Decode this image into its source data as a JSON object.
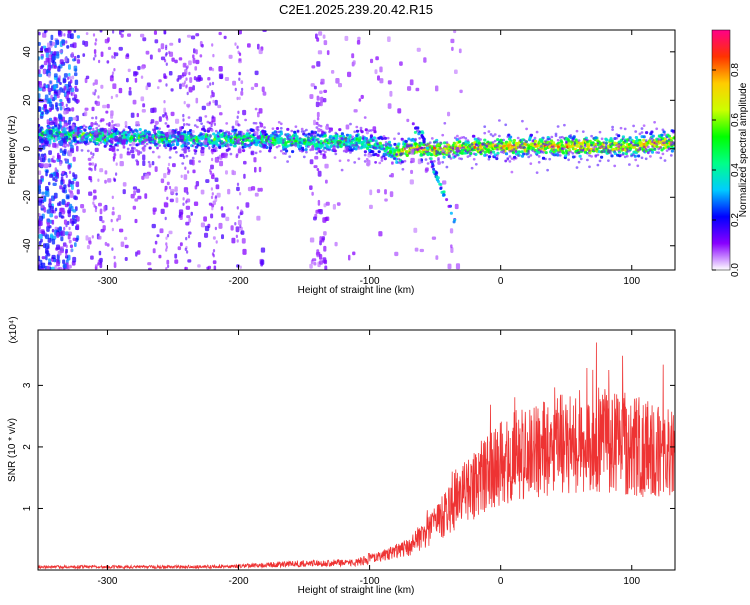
{
  "title": "C2E1.2025.239.20.42.R15",
  "chart_data": [
    {
      "type": "heatmap",
      "xlabel": "Height of straight line (km)",
      "ylabel": "Frequency (Hz)",
      "xlim": [
        -353,
        133
      ],
      "ylim": [
        -50,
        49
      ],
      "xticks": [
        -300,
        -200,
        -100,
        0,
        100
      ],
      "xtick_labels": [
        "-300",
        "-200",
        "-100",
        "0",
        "100"
      ],
      "yticks": [
        -40,
        -20,
        0,
        20,
        40
      ],
      "ytick_labels": [
        "-40",
        "-20",
        "0",
        "20",
        "40"
      ],
      "colorbar": {
        "label": "Normalized spectral amplitude",
        "range": [
          0,
          0.96
        ],
        "ticks": [
          0.0,
          0.2,
          0.4,
          0.6,
          0.8
        ],
        "tick_labels": [
          "0.0",
          "0.2",
          "0.4",
          "0.6",
          "0.8"
        ],
        "colormap": [
          "#ffffff",
          "#8800ff",
          "#0000ff",
          "#00ccff",
          "#00ff88",
          "#00ff00",
          "#ccff00",
          "#ffcc00",
          "#ff3300",
          "#ff0088"
        ]
      },
      "ridge": [
        {
          "x": -340,
          "y": 6
        },
        {
          "x": -300,
          "y": 5
        },
        {
          "x": -250,
          "y": 4
        },
        {
          "x": -200,
          "y": 4
        },
        {
          "x": -150,
          "y": 3
        },
        {
          "x": -110,
          "y": 3
        },
        {
          "x": -90,
          "y": 1
        },
        {
          "x": -80,
          "y": -2
        },
        {
          "x": -70,
          "y": 0
        },
        {
          "x": -50,
          "y": 0
        },
        {
          "x": 0,
          "y": 1
        },
        {
          "x": 50,
          "y": 1
        },
        {
          "x": 100,
          "y": 1
        },
        {
          "x": 133,
          "y": 3
        }
      ],
      "secondary_branch": [
        {
          "x": -70,
          "y": 12
        },
        {
          "x": -60,
          "y": 6
        },
        {
          "x": -50,
          "y": -10
        },
        {
          "x": -42,
          "y": -20
        },
        {
          "x": -35,
          "y": -30
        }
      ]
    },
    {
      "type": "line",
      "xlabel": "Height of straight line (km)",
      "ylabel": "SNR (10 * v/v)",
      "y_multiplier": "(x10⁴)",
      "xlim": [
        -353,
        133
      ],
      "ylim": [
        0,
        3.9
      ],
      "xticks": [
        -300,
        -200,
        -100,
        0,
        100
      ],
      "xtick_labels": [
        "-300",
        "-200",
        "-100",
        "0",
        "100"
      ],
      "yticks": [
        1,
        2,
        3
      ],
      "ytick_labels": [
        "1",
        "2",
        "3"
      ],
      "color": "#ee3333",
      "envelope": [
        {
          "x": -353,
          "y": 0.05
        },
        {
          "x": -250,
          "y": 0.05
        },
        {
          "x": -200,
          "y": 0.06
        },
        {
          "x": -160,
          "y": 0.1
        },
        {
          "x": -110,
          "y": 0.12
        },
        {
          "x": -90,
          "y": 0.25
        },
        {
          "x": -70,
          "y": 0.4
        },
        {
          "x": -50,
          "y": 0.8
        },
        {
          "x": -30,
          "y": 1.3
        },
        {
          "x": -10,
          "y": 1.7
        },
        {
          "x": 10,
          "y": 2.0
        },
        {
          "x": 40,
          "y": 2.2
        },
        {
          "x": 70,
          "y": 2.3
        },
        {
          "x": 100,
          "y": 2.2
        },
        {
          "x": 133,
          "y": 2.0
        }
      ]
    }
  ]
}
